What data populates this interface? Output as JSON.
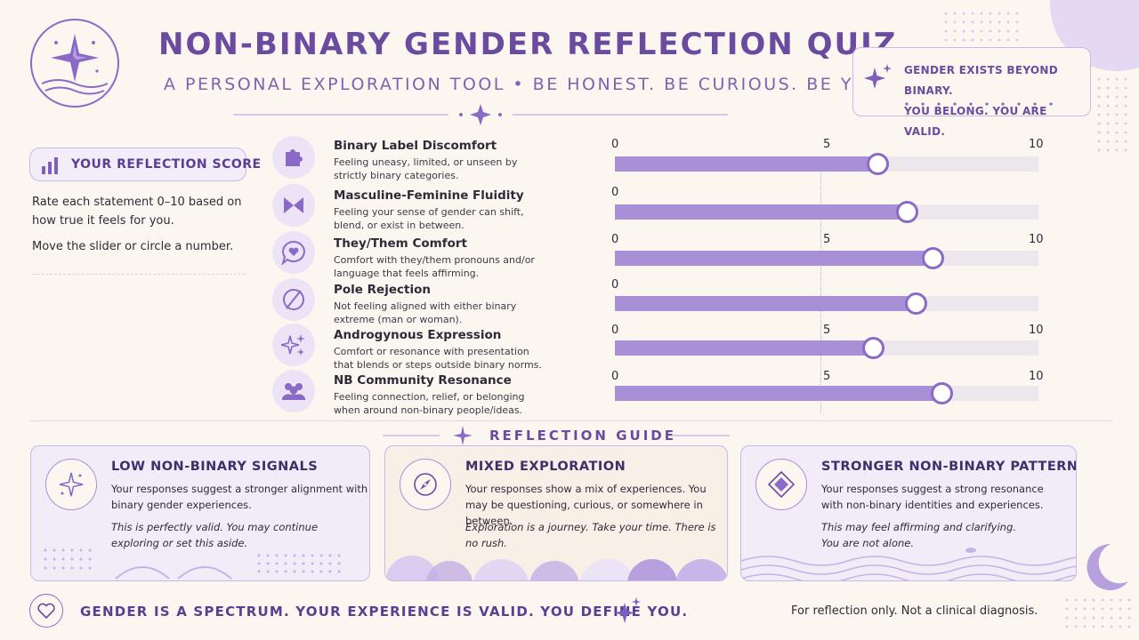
{
  "header": {
    "title": "NON-BINARY GENDER REFLECTION QUIZ",
    "subtitle": "A PERSONAL EXPLORATION TOOL • BE HONEST. BE CURIOUS. BE YOU."
  },
  "affirmation": {
    "line1": "GENDER EXISTS BEYOND BINARY.",
    "line2": "YOU BELONG. YOU ARE VALID."
  },
  "score_panel": {
    "title": "YOUR REFLECTION SCORE",
    "instruction_1": "Rate each statement 0–10 based on how true it feels for you.",
    "instruction_2": "Move the slider or circle a number."
  },
  "scale": {
    "min": 0,
    "max": 10,
    "mid": 5
  },
  "statements": [
    {
      "title": "Binary Label Discomfort",
      "description": "Feeling uneasy, limited, or unseen by strictly binary categories.",
      "value": 6.2,
      "icon": "puzzle-icon",
      "ticks": [
        "0",
        "5",
        "10"
      ]
    },
    {
      "title": "Masculine-Feminine Fluidity",
      "description": "Feeling your sense of gender can shift, blend, or exist in between.",
      "value": 6.9,
      "icon": "bowtie-icon",
      "ticks": [
        "0",
        "",
        ""
      ]
    },
    {
      "title": "They/Them Comfort",
      "description": "Comfort with they/them pronouns and/or language that feels affirming.",
      "value": 7.5,
      "icon": "heart-bubble-icon",
      "ticks": [
        "0",
        "5",
        "10"
      ]
    },
    {
      "title": "Pole Rejection",
      "description": "Not feeling aligned with either binary extreme (man or woman).",
      "value": 7.1,
      "icon": "slashed-circle-icon",
      "ticks": [
        "0",
        "",
        ""
      ]
    },
    {
      "title": "Androgynous Expression",
      "description": "Comfort or resonance with presentation that blends or steps outside binary norms.",
      "value": 6.1,
      "icon": "sparkles-icon",
      "ticks": [
        "0",
        "5",
        "10"
      ]
    },
    {
      "title": "NB Community Resonance",
      "description": "Feeling connection, relief, or belonging when around non-binary people/ideas.",
      "value": 7.7,
      "icon": "community-icon",
      "ticks": [
        "0",
        "5",
        "10"
      ]
    }
  ],
  "guide": {
    "title": "REFLECTION GUIDE",
    "cards": [
      {
        "title": "LOW NON-BINARY SIGNALS",
        "body": "Your responses suggest a stronger alignment with binary gender experiences.",
        "note": "This is perfectly valid. You may continue exploring or set this aside.",
        "icon": "sparkle-icon"
      },
      {
        "title": "MIXED EXPLORATION",
        "body": "Your responses show a mix of experiences. You may be questioning, curious, or somewhere in between.",
        "note": "Exploration is a journey. Take your time. There is no rush.",
        "icon": "compass-icon"
      },
      {
        "title": "STRONGER NON-BINARY PATTERN",
        "body": "Your responses suggest a strong resonance with non-binary identities and experiences.",
        "note": "This may feel affirming and clarifying. You are not alone.",
        "icon": "diamond-icon"
      }
    ]
  },
  "footer": {
    "message": "GENDER IS A SPECTRUM. YOUR EXPERIENCE IS VALID. YOU DEFINE YOU.",
    "disclaimer": "For reflection only. Not a clinical diagnosis."
  },
  "colors": {
    "primary": "#6a4ba0",
    "accent": "#a98fd6",
    "soft": "#ece3f6",
    "track": "#ebe7ec",
    "background": "#fbf7f0"
  }
}
